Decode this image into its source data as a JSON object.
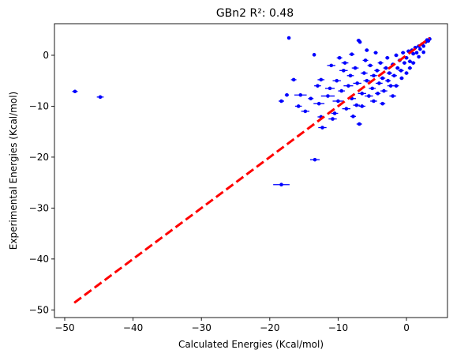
{
  "chart_data": {
    "type": "scatter",
    "title": "GBn2 R²: 0.48",
    "xlabel": "Calculated Energies (Kcal/mol)",
    "ylabel": "Experimental Energies (Kcal/mol)",
    "xlim": [
      -51.5,
      6.0
    ],
    "ylim": [
      -51.5,
      6.2
    ],
    "xticks": [
      -50,
      -40,
      -30,
      -20,
      -10,
      0
    ],
    "yticks": [
      -50,
      -40,
      -30,
      -20,
      -10,
      0
    ],
    "xtick_labels": [
      "−50",
      "−40",
      "−30",
      "−20",
      "−10",
      "0"
    ],
    "ytick_labels": [
      "−50",
      "−40",
      "−30",
      "−20",
      "−10",
      "0"
    ],
    "grid": false,
    "marker_color": "#0000ff",
    "fit_line": {
      "x": [
        -48.6,
        3.4
      ],
      "y": [
        -48.6,
        3.4
      ],
      "color": "#ff0000",
      "style": "dashed"
    },
    "points": [
      {
        "x": -48.5,
        "y": -7.1,
        "xerr": 0.4
      },
      {
        "x": -44.8,
        "y": -8.2,
        "xerr": 0.5
      },
      {
        "x": -18.3,
        "y": -25.4,
        "xerr": 1.2
      },
      {
        "x": -13.4,
        "y": -20.5,
        "xerr": 0.7
      },
      {
        "x": -17.2,
        "y": 3.4,
        "xerr": 0
      },
      {
        "x": -13.5,
        "y": 0.1,
        "xerr": 0
      },
      {
        "x": -16.5,
        "y": -4.8,
        "xerr": 0.4
      },
      {
        "x": -17.5,
        "y": -7.8,
        "xerr": 0.3
      },
      {
        "x": -15.5,
        "y": -7.8,
        "xerr": 0.9
      },
      {
        "x": -18.3,
        "y": -9.0,
        "xerr": 0.4
      },
      {
        "x": -15.8,
        "y": -10.0,
        "xerr": 0.5
      },
      {
        "x": -14.8,
        "y": -11.0,
        "xerr": 0.6
      },
      {
        "x": -12.8,
        "y": -9.5,
        "xerr": 0.8
      },
      {
        "x": -12.5,
        "y": -4.8,
        "xerr": 0.5
      },
      {
        "x": -12.3,
        "y": -14.2,
        "xerr": 0.6
      },
      {
        "x": -12.5,
        "y": -12.1,
        "xerr": 0.5
      },
      {
        "x": -11.5,
        "y": -8.0,
        "xerr": 1.0
      },
      {
        "x": -11.2,
        "y": -6.5,
        "xerr": 0.7
      },
      {
        "x": -10.5,
        "y": -11.4,
        "xerr": 0.5
      },
      {
        "x": -10.2,
        "y": -5.0,
        "xerr": 0.6
      },
      {
        "x": -10.0,
        "y": -9.0,
        "xerr": 0.8
      },
      {
        "x": -9.5,
        "y": -7.0,
        "xerr": 0.5
      },
      {
        "x": -9.2,
        "y": -3.0,
        "xerr": 0.6
      },
      {
        "x": -9.0,
        "y": -1.5,
        "xerr": 0.5
      },
      {
        "x": -8.8,
        "y": -10.5,
        "xerr": 0.6
      },
      {
        "x": -8.5,
        "y": -6.0,
        "xerr": 0.7
      },
      {
        "x": -8.2,
        "y": -4.0,
        "xerr": 0.5
      },
      {
        "x": -8.0,
        "y": -8.5,
        "xerr": 0.6
      },
      {
        "x": -7.8,
        "y": -12.0,
        "xerr": 0.4
      },
      {
        "x": -7.5,
        "y": -2.5,
        "xerr": 0.5
      },
      {
        "x": -7.2,
        "y": -5.5,
        "xerr": 0.6
      },
      {
        "x": -7.0,
        "y": 2.9,
        "xerr": 0.3
      },
      {
        "x": -6.8,
        "y": 2.6,
        "xerr": 0.2
      },
      {
        "x": -6.9,
        "y": -13.5,
        "xerr": 0.4
      },
      {
        "x": -6.5,
        "y": -7.5,
        "xerr": 0.6
      },
      {
        "x": -6.2,
        "y": -3.5,
        "xerr": 0.5
      },
      {
        "x": -6.0,
        "y": -1.0,
        "xerr": 0.4
      },
      {
        "x": -5.8,
        "y": -5.0,
        "xerr": 0.5
      },
      {
        "x": -5.5,
        "y": -8.0,
        "xerr": 0.6
      },
      {
        "x": -5.3,
        "y": -2.0,
        "xerr": 0.4
      },
      {
        "x": -5.0,
        "y": -6.5,
        "xerr": 0.5
      },
      {
        "x": -4.8,
        "y": -4.0,
        "xerr": 0.5
      },
      {
        "x": -4.5,
        "y": 0.5,
        "xerr": 0.3
      },
      {
        "x": -4.3,
        "y": -3.0,
        "xerr": 0.4
      },
      {
        "x": -4.0,
        "y": -5.5,
        "xerr": 0.5
      },
      {
        "x": -3.8,
        "y": -1.5,
        "xerr": 0.4
      },
      {
        "x": -3.5,
        "y": -4.5,
        "xerr": 0.4
      },
      {
        "x": -3.3,
        "y": -7.0,
        "xerr": 0.5
      },
      {
        "x": -3.0,
        "y": -2.5,
        "xerr": 0.4
      },
      {
        "x": -2.8,
        "y": -0.5,
        "xerr": 0.3
      },
      {
        "x": -2.5,
        "y": -3.5,
        "xerr": 0.4
      },
      {
        "x": -2.3,
        "y": -6.0,
        "xerr": 0.5
      },
      {
        "x": -2.0,
        "y": -1.8,
        "xerr": 0.3
      },
      {
        "x": -1.8,
        "y": -4.0,
        "xerr": 0.4
      },
      {
        "x": -1.5,
        "y": 0.0,
        "xerr": 0.3
      },
      {
        "x": -1.3,
        "y": -2.5,
        "xerr": 0.3
      },
      {
        "x": -1.0,
        "y": -1.0,
        "xerr": 0.3
      },
      {
        "x": -0.8,
        "y": -3.0,
        "xerr": 0.4
      },
      {
        "x": -0.5,
        "y": 0.5,
        "xerr": 0.3
      },
      {
        "x": -0.3,
        "y": -1.5,
        "xerr": 0.3
      },
      {
        "x": 0.0,
        "y": -0.5,
        "xerr": 0.3
      },
      {
        "x": 0.3,
        "y": 0.8,
        "xerr": 0.3
      },
      {
        "x": 0.5,
        "y": -1.2,
        "xerr": 0.3
      },
      {
        "x": 0.8,
        "y": 1.0,
        "xerr": 0.3
      },
      {
        "x": 1.0,
        "y": 0.3,
        "xerr": 0.3
      },
      {
        "x": 1.3,
        "y": 1.5,
        "xerr": 0.3
      },
      {
        "x": 1.5,
        "y": 0.5,
        "xerr": 0.2
      },
      {
        "x": 1.8,
        "y": 1.8,
        "xerr": 0.3
      },
      {
        "x": 2.0,
        "y": 1.2,
        "xerr": 0.2
      },
      {
        "x": 2.3,
        "y": 2.2,
        "xerr": 0.2
      },
      {
        "x": 2.5,
        "y": 1.8,
        "xerr": 0.2
      },
      {
        "x": 2.8,
        "y": 2.6,
        "xerr": 0.2
      },
      {
        "x": 3.0,
        "y": 3.0,
        "xerr": 0.2
      },
      {
        "x": 3.2,
        "y": 2.8,
        "xerr": 0.2
      },
      {
        "x": 3.4,
        "y": 3.2,
        "xerr": 0.2
      },
      {
        "x": -11.0,
        "y": -2.0,
        "xerr": 0.6
      },
      {
        "x": -9.8,
        "y": -0.5,
        "xerr": 0.4
      },
      {
        "x": -8.0,
        "y": 0.2,
        "xerr": 0.4
      },
      {
        "x": -5.8,
        "y": 1.0,
        "xerr": 0.3
      },
      {
        "x": -6.5,
        "y": -10.0,
        "xerr": 0.5
      },
      {
        "x": -4.8,
        "y": -9.0,
        "xerr": 0.5
      },
      {
        "x": -13.0,
        "y": -6.0,
        "xerr": 0.5
      },
      {
        "x": -14.0,
        "y": -8.5,
        "xerr": 0.4
      },
      {
        "x": -2.0,
        "y": -8.0,
        "xerr": 0.5
      },
      {
        "x": -3.5,
        "y": -9.5,
        "xerr": 0.4
      },
      {
        "x": -1.5,
        "y": -6.0,
        "xerr": 0.4
      },
      {
        "x": 0.0,
        "y": -3.5,
        "xerr": 0.3
      },
      {
        "x": 0.5,
        "y": -2.5,
        "xerr": 0.3
      },
      {
        "x": 1.0,
        "y": -1.5,
        "xerr": 0.3
      },
      {
        "x": -10.8,
        "y": -12.5,
        "xerr": 0.6
      },
      {
        "x": -7.3,
        "y": -9.8,
        "xerr": 0.5
      },
      {
        "x": -4.2,
        "y": -7.5,
        "xerr": 0.4
      },
      {
        "x": -2.7,
        "y": -5.0,
        "xerr": 0.4
      },
      {
        "x": -0.7,
        "y": -4.5,
        "xerr": 0.3
      },
      {
        "x": 1.8,
        "y": -0.3,
        "xerr": 0.2
      },
      {
        "x": 2.5,
        "y": 0.6,
        "xerr": 0.2
      }
    ]
  }
}
